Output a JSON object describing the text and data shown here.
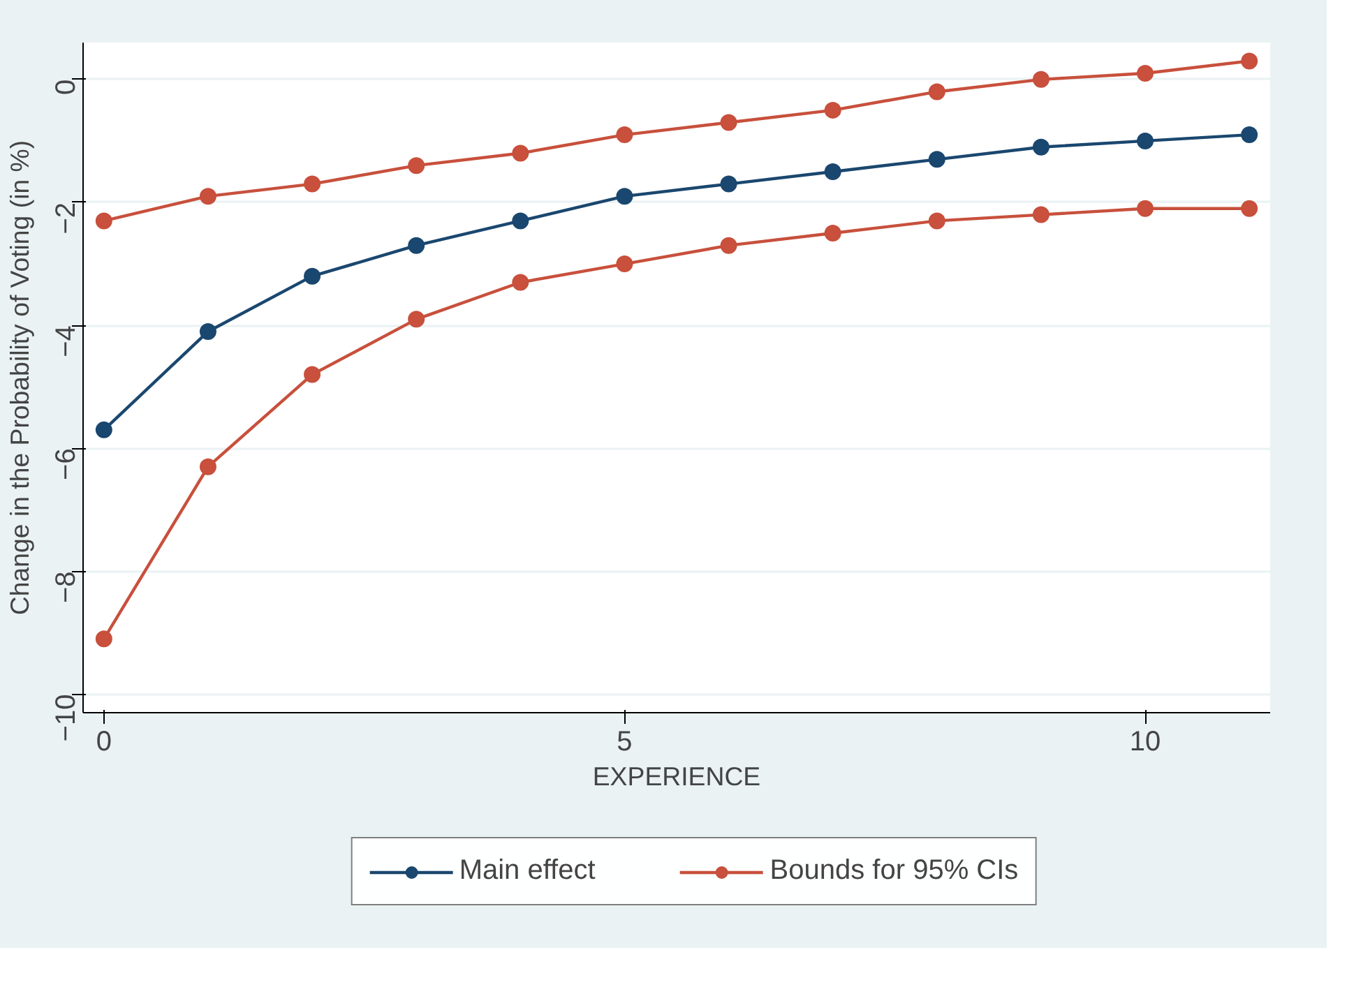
{
  "chart_data": {
    "type": "line",
    "xlabel": "EXPERIENCE",
    "ylabel": "Change in the Probability of Voting (in %)",
    "x": [
      0,
      1,
      2,
      3,
      4,
      5,
      6,
      7,
      8,
      9,
      10,
      11
    ],
    "series": [
      {
        "name": "Main effect",
        "color": "#1a476f",
        "values": [
          -5.7,
          -4.1,
          -3.2,
          -2.7,
          -2.3,
          -1.9,
          -1.7,
          -1.5,
          -1.3,
          -1.1,
          -1.0,
          -0.9
        ]
      },
      {
        "name": "Bounds for 95% CIs",
        "color": "#c8503c",
        "values": [
          -2.3,
          -1.9,
          -1.7,
          -1.4,
          -1.2,
          -0.9,
          -0.7,
          -0.5,
          -0.2,
          0.0,
          0.1,
          0.3
        ]
      },
      {
        "color": "#c8503c",
        "values": [
          -9.1,
          -6.3,
          -4.8,
          -3.9,
          -3.3,
          -3.0,
          -2.7,
          -2.5,
          -2.3,
          -2.2,
          -2.1,
          -2.1
        ]
      }
    ],
    "xlim": [
      -0.2,
      11.2
    ],
    "ylim": [
      -10.3,
      0.6
    ],
    "xticks": [
      0,
      5,
      10
    ],
    "yticks": [
      -10,
      -8,
      -6,
      -4,
      -2,
      0
    ],
    "grid": "y",
    "legend": "bottom",
    "marker": "circle",
    "line_style": "solid"
  }
}
